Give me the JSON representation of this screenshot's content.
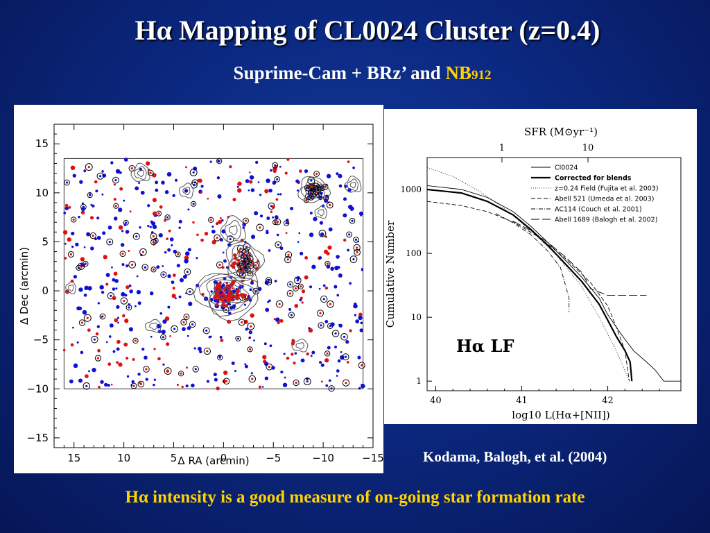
{
  "slide": {
    "title": "Hα Mapping of  CL0024 Cluster (z=0.4)",
    "subtitle_main": "Suprime-Cam + BRz’ and ",
    "subtitle_nb": "NB",
    "subtitle_nb_sub": "912",
    "citation": "Kodama, Balogh, et al. (2004)",
    "footer": "Hα intensity is a good measure of  on-going star formation rate",
    "colors": {
      "accent": "#ffd200",
      "background": "#0b2880"
    }
  },
  "chart_data": [
    {
      "type": "scatter",
      "xlabel": "Δ RA (arcmin)",
      "ylabel": "Δ Dec (arcmin)",
      "xlim": [
        17,
        -15
      ],
      "ylim": [
        -16,
        17
      ],
      "xticks": [
        15,
        10,
        5,
        0,
        -5,
        -10,
        -15
      ],
      "xtick_labels": [
        "15",
        "10",
        "5",
        "0",
        "−5",
        "−10",
        "−15"
      ],
      "yticks": [
        15,
        10,
        5,
        0,
        -5,
        -10,
        -15
      ],
      "ytick_labels": [
        "15",
        "10",
        "5",
        "0",
        "−5",
        "−10",
        "−15"
      ],
      "field_box": {
        "x": [
          16,
          -14
        ],
        "y": [
          -10,
          13.5
        ]
      },
      "series": [
        {
          "color": "#1010d0",
          "marker": "dot"
        },
        {
          "color": "#e01010",
          "marker": "dot"
        },
        {
          "color": "#000000",
          "marker": "circle"
        }
      ],
      "contours": [
        {
          "cx": -0.5,
          "cy": -0.3,
          "rx": 3.2,
          "ry": 2.4,
          "levels": 7
        },
        {
          "cx": -2.0,
          "cy": 3.0,
          "rx": 1.8,
          "ry": 2.0,
          "levels": 5
        },
        {
          "cx": -1.0,
          "cy": 6.2,
          "rx": 1.2,
          "ry": 1.3,
          "levels": 3
        },
        {
          "cx": -9.0,
          "cy": 10.3,
          "rx": 1.5,
          "ry": 1.3,
          "levels": 4
        },
        {
          "cx": -13.0,
          "cy": 10.8,
          "rx": 0.8,
          "ry": 0.8,
          "levels": 3
        },
        {
          "cx": 8.3,
          "cy": 12.0,
          "rx": 0.9,
          "ry": 0.9,
          "levels": 3
        },
        {
          "cx": 3.7,
          "cy": 10.2,
          "rx": 0.7,
          "ry": 0.7,
          "levels": 2
        },
        {
          "cx": 7.0,
          "cy": -3.6,
          "rx": 0.8,
          "ry": 0.6,
          "levels": 2
        },
        {
          "cx": -7.7,
          "cy": -5.6,
          "rx": 0.8,
          "ry": 0.6,
          "levels": 2
        },
        {
          "cx": 15.3,
          "cy": 0.3,
          "rx": 0.5,
          "ry": 0.6,
          "levels": 2
        },
        {
          "cx": -9.8,
          "cy": 8.0,
          "rx": 0.6,
          "ry": 0.6,
          "levels": 2
        }
      ]
    },
    {
      "type": "line",
      "xlabel": "log10  L(Hα+[NII])",
      "ylabel": "Cumulative  Number",
      "top_axis_label": "SFR  (M⊙yr⁻¹)",
      "top_ticks": [
        {
          "label": "1",
          "x": 40.77
        },
        {
          "label": "10",
          "x": 41.77
        }
      ],
      "xlim": [
        39.9,
        42.85
      ],
      "ylim_log10": [
        -0.15,
        3.5
      ],
      "log_y": true,
      "xticks": [
        40,
        41,
        42
      ],
      "xtick_labels": [
        "40",
        "41",
        "42"
      ],
      "yticks": [
        1,
        10,
        100,
        1000
      ],
      "ytick_labels": [
        "1",
        "10",
        "100",
        "1000"
      ],
      "inset_label": "Hα LF",
      "legend_position": "top-right",
      "series": [
        {
          "name": "Cl0024",
          "style": "thin",
          "x": [
            39.9,
            40.3,
            40.6,
            40.9,
            41.1,
            41.3,
            41.5,
            41.7,
            41.9,
            42.0,
            42.1,
            42.2,
            42.3,
            42.45,
            42.55,
            42.65,
            42.85
          ],
          "y": [
            1150,
            1000,
            750,
            450,
            270,
            150,
            80,
            42,
            20,
            11,
            7,
            4.5,
            3,
            2,
            1.5,
            1,
            1
          ]
        },
        {
          "name": "Corrected for blends",
          "style": "thick",
          "x": [
            39.9,
            40.3,
            40.6,
            40.9,
            41.1,
            41.3,
            41.5,
            41.7,
            41.9,
            42.0,
            42.1,
            42.2,
            42.26,
            42.28
          ],
          "y": [
            1000,
            880,
            650,
            400,
            240,
            135,
            70,
            36,
            16,
            9,
            5,
            3,
            2,
            1
          ]
        },
        {
          "name": "z=0.24 Field (Fujita et al. 2003)",
          "style": "dotted",
          "x": [
            39.9,
            40.2,
            40.5,
            40.8,
            41.1,
            41.4,
            41.7,
            41.9,
            42.1,
            42.25
          ],
          "y": [
            2200,
            1600,
            950,
            500,
            230,
            95,
            30,
            10,
            3,
            1
          ]
        },
        {
          "name": "Abell 521 (Umeda et al. 2003)",
          "style": "dashed",
          "x": [
            39.9,
            40.3,
            40.6,
            40.9,
            41.2,
            41.5,
            41.8,
            42.0,
            42.1,
            42.2,
            42.25
          ],
          "y": [
            650,
            560,
            450,
            310,
            180,
            85,
            35,
            15,
            7,
            3,
            1
          ]
        },
        {
          "name": "AC114 (Couch et al. 2001)",
          "style": "dashdot",
          "x": [
            40.7,
            40.9,
            41.1,
            41.3,
            41.45,
            41.5,
            41.55,
            41.55
          ],
          "y": [
            420,
            300,
            200,
            110,
            60,
            35,
            20,
            12
          ]
        },
        {
          "name": "Abell 1689 (Balogh et al. 2002)",
          "style": "longdash",
          "x": [
            40.9,
            41.1,
            41.3,
            41.5,
            41.7,
            41.8,
            42.0,
            42.45
          ],
          "y": [
            320,
            230,
            150,
            90,
            50,
            28,
            22,
            22
          ]
        }
      ]
    }
  ]
}
